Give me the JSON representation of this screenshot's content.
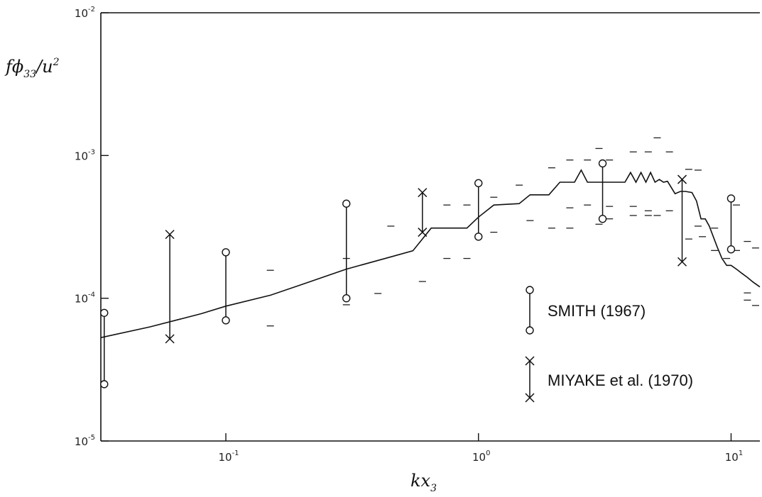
{
  "chart_data": {
    "type": "scatter",
    "title": "",
    "ylabel": {
      "base": "f",
      "phi": "ϕ",
      "sub": "33",
      "slash": "/u",
      "sup": "2"
    },
    "xlabel": {
      "base": "kx",
      "sub": "3"
    },
    "x_scale": "log",
    "y_scale": "log",
    "xlim": [
      0.032,
      13
    ],
    "ylim": [
      1e-05,
      0.01
    ],
    "x_ticks": [
      {
        "value": 0.1,
        "base": "10",
        "exp": "-1"
      },
      {
        "value": 1,
        "base": "10",
        "exp": "0"
      },
      {
        "value": 10,
        "base": "10",
        "exp": "1"
      }
    ],
    "y_ticks": [
      {
        "value": 1e-05,
        "base": "10",
        "exp": "-5"
      },
      {
        "value": 0.0001,
        "base": "10",
        "exp": "-4"
      },
      {
        "value": 0.001,
        "base": "10",
        "exp": "-3"
      },
      {
        "value": 0.01,
        "base": "10",
        "exp": "-2"
      }
    ],
    "grid": false,
    "legend_position": "bottom-right",
    "series": [
      {
        "name": "SMITH (1967)",
        "marker": "circle",
        "ranges": [
          {
            "x": 0.033,
            "low": 2.5e-05,
            "high": 7.9e-05
          },
          {
            "x": 0.1,
            "low": 7e-05,
            "high": 0.00021
          },
          {
            "x": 0.3,
            "low": 0.0001,
            "high": 0.00046
          },
          {
            "x": 1.0,
            "low": 0.00027,
            "high": 0.00064
          },
          {
            "x": 3.1,
            "low": 0.00036,
            "high": 0.00088
          },
          {
            "x": 10.0,
            "low": 0.00022,
            "high": 0.0005
          }
        ]
      },
      {
        "name": "MIYAKE et al. (1970)",
        "marker": "x",
        "ranges": [
          {
            "x": 0.06,
            "low": 5.2e-05,
            "high": 0.00028
          },
          {
            "x": 0.6,
            "low": 0.00029,
            "high": 0.00055
          },
          {
            "x": 6.4,
            "low": 0.00018,
            "high": 0.00068
          }
        ]
      },
      {
        "name": "",
        "kind": "line",
        "x": [
          0.032,
          0.05,
          0.08,
          0.1,
          0.15,
          0.2,
          0.3,
          0.45,
          0.55,
          0.65,
          0.75,
          0.9,
          1.0,
          1.15,
          1.45,
          1.6,
          1.9,
          2.1,
          2.4,
          2.55,
          2.7,
          3.0,
          3.5,
          3.8,
          4.0,
          4.2,
          4.4,
          4.6,
          4.8,
          5.0,
          5.2,
          5.4,
          5.6,
          6.0,
          6.3,
          6.6,
          7.0,
          7.3,
          7.6,
          7.9,
          8.2,
          8.5,
          8.8,
          9.2,
          9.6,
          10.0,
          10.5,
          11.0,
          11.6,
          12.2,
          13.0
        ],
        "y": [
          5.3e-05,
          6.3e-05,
          7.8e-05,
          8.8e-05,
          0.000105,
          0.000125,
          0.00016,
          0.000195,
          0.000215,
          0.00031,
          0.00031,
          0.00031,
          0.00037,
          0.00045,
          0.00046,
          0.00053,
          0.00053,
          0.00065,
          0.00065,
          0.00079,
          0.00065,
          0.00065,
          0.00065,
          0.00065,
          0.00076,
          0.00065,
          0.00076,
          0.00065,
          0.00076,
          0.00065,
          0.00068,
          0.00065,
          0.00066,
          0.00054,
          0.00056,
          0.00056,
          0.00055,
          0.00048,
          0.00036,
          0.00036,
          0.00032,
          0.00027,
          0.00023,
          0.00019,
          0.00017,
          0.00017,
          0.00016,
          0.00015,
          0.00014,
          0.00013,
          0.00012
        ]
      },
      {
        "name": "",
        "kind": "dashes",
        "points": [
          [
            0.15,
            0.000157
          ],
          [
            0.15,
            6.4e-05
          ],
          [
            0.3,
            0.00019
          ],
          [
            0.3,
            9e-05
          ],
          [
            0.4,
            0.000108
          ],
          [
            0.45,
            0.00032
          ],
          [
            0.6,
            0.000131
          ],
          [
            0.75,
            0.00045
          ],
          [
            0.75,
            0.00019
          ],
          [
            0.9,
            0.00045
          ],
          [
            0.9,
            0.00019
          ],
          [
            1.15,
            0.00051
          ],
          [
            1.15,
            0.00029
          ],
          [
            1.45,
            0.00062
          ],
          [
            1.6,
            0.00035
          ],
          [
            1.95,
            0.00082
          ],
          [
            1.95,
            0.00031
          ],
          [
            2.3,
            0.00093
          ],
          [
            2.3,
            0.00031
          ],
          [
            2.3,
            0.00043
          ],
          [
            2.7,
            0.00093
          ],
          [
            2.7,
            0.00045
          ],
          [
            3.0,
            0.00112
          ],
          [
            3.0,
            0.00033
          ],
          [
            3.3,
            0.00093
          ],
          [
            3.3,
            0.00044
          ],
          [
            3.3,
            0.00036
          ],
          [
            4.1,
            0.00106
          ],
          [
            4.1,
            0.00044
          ],
          [
            4.1,
            0.00038
          ],
          [
            4.7,
            0.00106
          ],
          [
            4.7,
            0.00041
          ],
          [
            4.7,
            0.00038
          ],
          [
            5.1,
            0.00133
          ],
          [
            5.1,
            0.00038
          ],
          [
            5.7,
            0.00106
          ],
          [
            5.7,
            0.00041
          ],
          [
            6.8,
            0.0008
          ],
          [
            6.8,
            0.00026
          ],
          [
            7.4,
            0.00079
          ],
          [
            7.4,
            0.00032
          ],
          [
            7.7,
            0.00027
          ],
          [
            8.6,
            0.00031
          ],
          [
            8.6,
            0.000216
          ],
          [
            9.6,
            0.00019
          ],
          [
            10.5,
            0.00045
          ],
          [
            10.5,
            0.000216
          ],
          [
            11.6,
            0.00025
          ],
          [
            11.6,
            0.000109
          ],
          [
            11.6,
            9.7e-05
          ],
          [
            12.5,
            0.000225
          ],
          [
            12.5,
            8.9e-05
          ]
        ]
      }
    ]
  }
}
